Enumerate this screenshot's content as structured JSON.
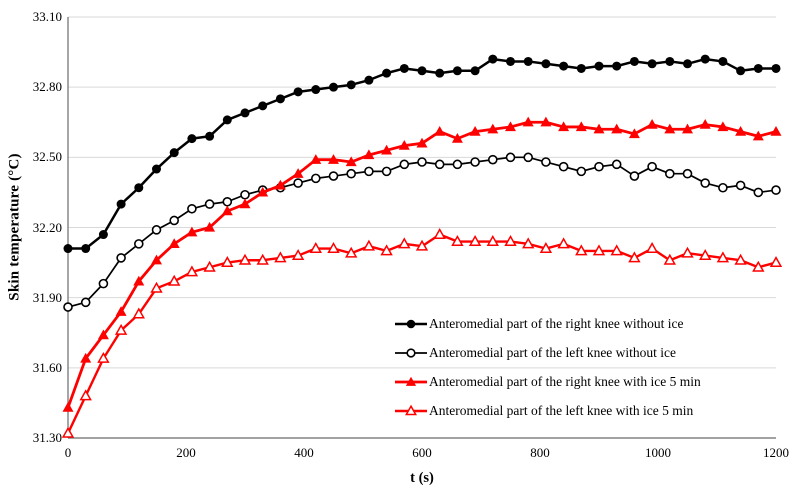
{
  "chart_data": {
    "type": "line",
    "title": "",
    "xlabel": "t (s)",
    "ylabel": "Skin temperature (°C)",
    "xlim": [
      0,
      1200
    ],
    "ylim": [
      31.3,
      33.1
    ],
    "xticks": [
      0,
      200,
      400,
      600,
      800,
      1000,
      1200
    ],
    "xtick_labels": [
      "0",
      "200",
      "400",
      "600",
      "800",
      "1000",
      "1200"
    ],
    "yticks": [
      33.1,
      32.8,
      32.5,
      32.2,
      31.9,
      31.6,
      31.3
    ],
    "ytick_labels": [
      "33.10",
      "32.80",
      "32.50",
      "32.20",
      "31.90",
      "31.60",
      "31.30"
    ],
    "grid": true,
    "grid_color": "#d9d9d9",
    "axis_color": "#6b6b6b",
    "background_color": "#ffffff",
    "legend_position": "inside-lower-right",
    "x": [
      0,
      30,
      60,
      90,
      120,
      150,
      180,
      210,
      240,
      270,
      300,
      330,
      360,
      390,
      420,
      450,
      480,
      510,
      540,
      570,
      600,
      630,
      660,
      690,
      720,
      750,
      780,
      810,
      840,
      870,
      900,
      930,
      960,
      990,
      1020,
      1050,
      1080,
      1110,
      1140,
      1170,
      1200
    ],
    "series": [
      {
        "name": "Anteromedial part of the right knee without ice",
        "color": "#000000",
        "marker": "circle-filled",
        "values": [
          32.11,
          32.11,
          32.17,
          32.3,
          32.37,
          32.45,
          32.52,
          32.58,
          32.59,
          32.66,
          32.69,
          32.72,
          32.75,
          32.78,
          32.79,
          32.8,
          32.81,
          32.83,
          32.86,
          32.88,
          32.87,
          32.86,
          32.87,
          32.87,
          32.92,
          32.91,
          32.91,
          32.9,
          32.89,
          32.88,
          32.89,
          32.89,
          32.91,
          32.9,
          32.91,
          32.9,
          32.92,
          32.91,
          32.87,
          32.88,
          32.88
        ]
      },
      {
        "name": "Anteromedial part of the left knee without ice",
        "color": "#000000",
        "marker": "circle-open",
        "values": [
          31.86,
          31.88,
          31.96,
          32.07,
          32.13,
          32.19,
          32.23,
          32.28,
          32.3,
          32.31,
          32.34,
          32.36,
          32.37,
          32.39,
          32.41,
          32.42,
          32.43,
          32.44,
          32.44,
          32.47,
          32.48,
          32.47,
          32.47,
          32.48,
          32.49,
          32.5,
          32.5,
          32.48,
          32.46,
          32.44,
          32.46,
          32.47,
          32.42,
          32.46,
          32.43,
          32.43,
          32.39,
          32.37,
          32.38,
          32.35,
          32.36
        ]
      },
      {
        "name": "Anteromedial part of the right knee with ice 5 min",
        "color": "#ff0000",
        "marker": "triangle-filled",
        "values": [
          31.43,
          31.64,
          31.74,
          31.84,
          31.97,
          32.06,
          32.13,
          32.18,
          32.2,
          32.27,
          32.3,
          32.35,
          32.38,
          32.43,
          32.49,
          32.49,
          32.48,
          32.51,
          32.53,
          32.55,
          32.56,
          32.61,
          32.58,
          32.61,
          32.62,
          32.63,
          32.65,
          32.65,
          32.63,
          32.63,
          32.62,
          32.62,
          32.6,
          32.64,
          32.62,
          32.62,
          32.64,
          32.63,
          32.61,
          32.59,
          32.61
        ]
      },
      {
        "name": "Anteromedial part of the left knee with ice 5 min",
        "color": "#ff0000",
        "marker": "triangle-open",
        "values": [
          31.32,
          31.48,
          31.64,
          31.76,
          31.83,
          31.94,
          31.97,
          32.01,
          32.03,
          32.05,
          32.06,
          32.06,
          32.07,
          32.08,
          32.11,
          32.11,
          32.09,
          32.12,
          32.1,
          32.13,
          32.12,
          32.17,
          32.14,
          32.14,
          32.14,
          32.14,
          32.13,
          32.11,
          32.13,
          32.1,
          32.1,
          32.1,
          32.07,
          32.11,
          32.06,
          32.09,
          32.08,
          32.07,
          32.06,
          32.03,
          32.05
        ]
      }
    ]
  }
}
